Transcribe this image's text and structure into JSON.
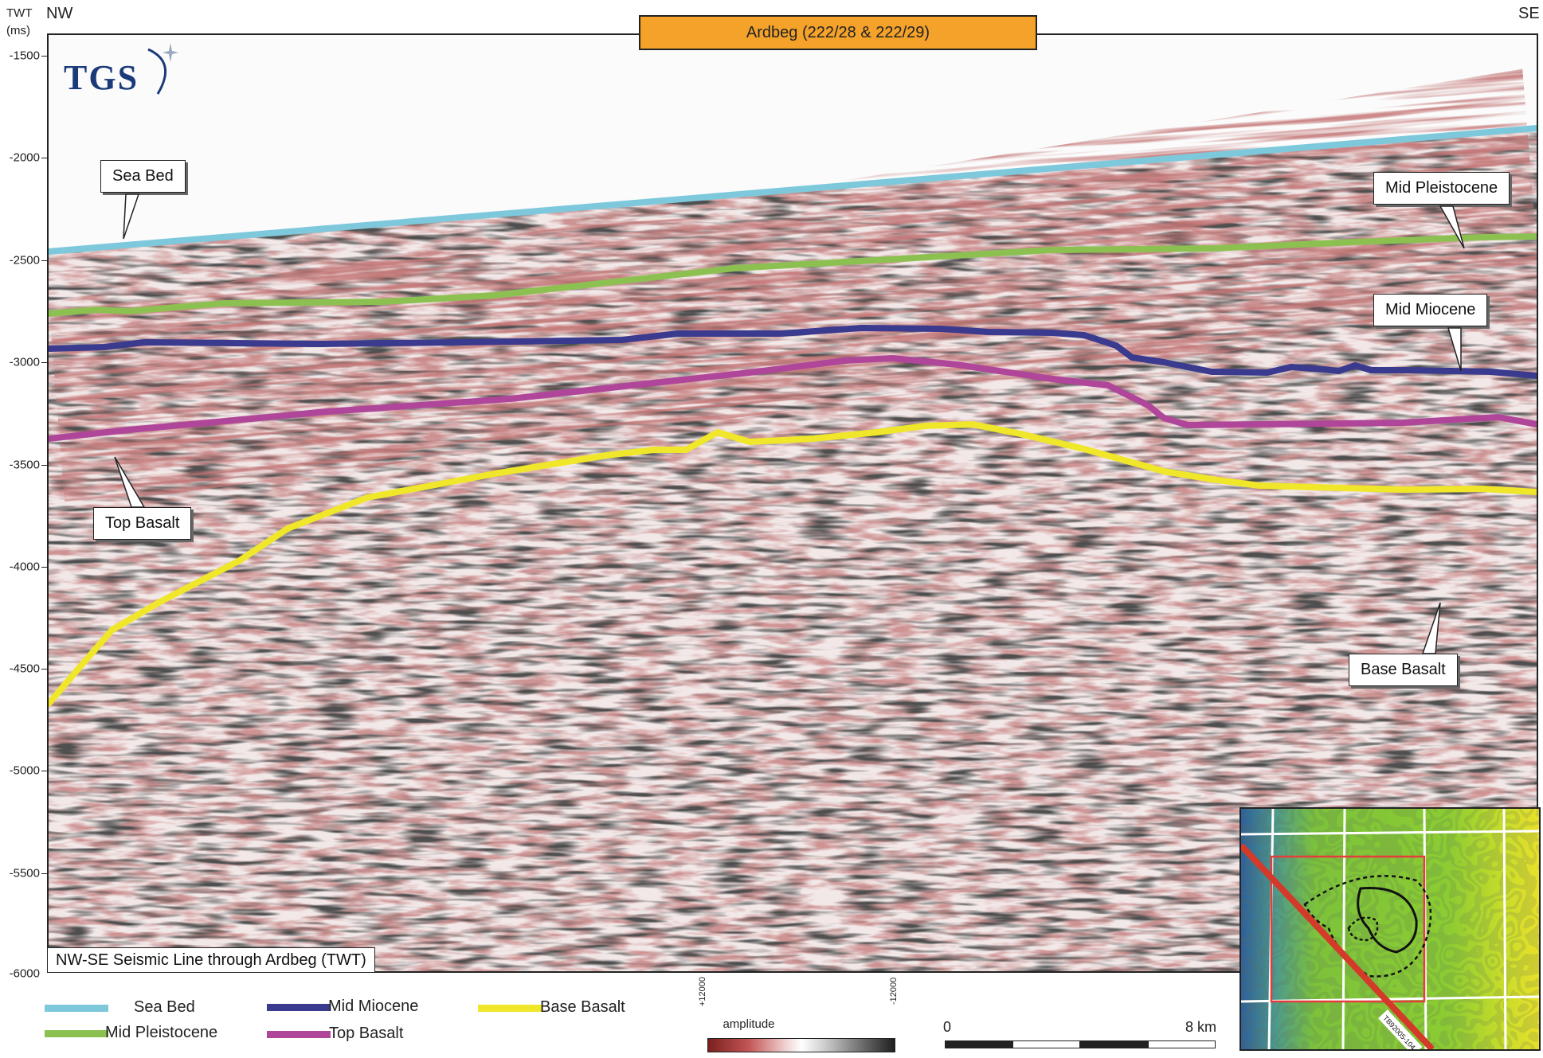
{
  "axis": {
    "twt_label": "TWT",
    "units_label": "(ms)",
    "ticks": [
      "-1500",
      "-2000",
      "-2500",
      "-3000",
      "-3500",
      "-4000",
      "-4500",
      "-5000",
      "-5500",
      "-6000"
    ],
    "tick_values": [
      -1500,
      -2000,
      -2500,
      -3000,
      -3500,
      -4000,
      -4500,
      -5000,
      -5500,
      -6000
    ]
  },
  "direction": {
    "left": "NW",
    "right": "SE"
  },
  "title": "Ardbeg (222/28 & 222/29)",
  "logo": "TGS",
  "caption": "NW-SE Seismic Line through Ardbeg (TWT)",
  "horizons": [
    {
      "key": "sea_bed",
      "label": "Sea Bed",
      "color": "#7ec8dc"
    },
    {
      "key": "mid_pleistocene",
      "label": "Mid Pleistocene",
      "color": "#8cc152"
    },
    {
      "key": "mid_miocene",
      "label": "Mid Miocene",
      "color": "#3a3a8f"
    },
    {
      "key": "top_basalt",
      "label": "Top Basalt",
      "color": "#b0469a"
    },
    {
      "key": "base_basalt",
      "label": "Base Basalt",
      "color": "#f0e62a"
    }
  ],
  "amplitude": {
    "label": "amplitude",
    "max": "+12000",
    "min": "-12000"
  },
  "scale": {
    "start": "0",
    "end": "8 km"
  },
  "inset": {
    "line_label": "TB92005-104",
    "colors": {
      "low": "#3a7ab0",
      "mid": "#7cc23a",
      "high": "#e8e02a"
    }
  }
}
